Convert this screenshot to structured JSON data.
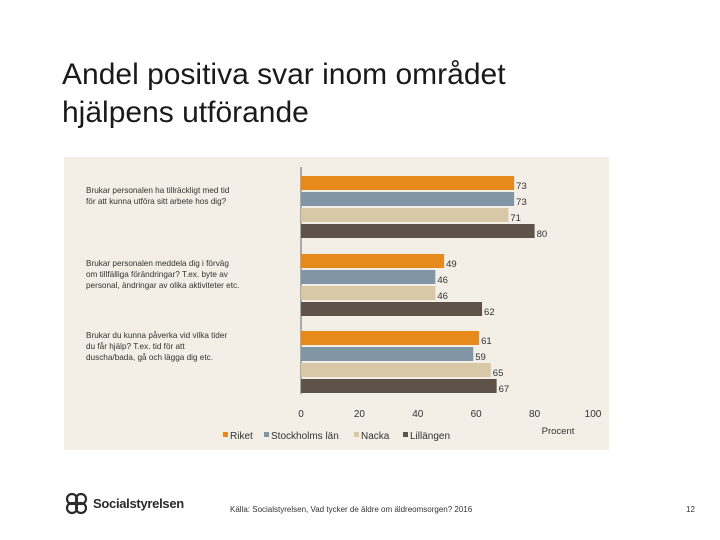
{
  "title_lines": [
    "Andel positiva svar inom området",
    "hjälpens utförande"
  ],
  "colors": {
    "Riket": "#e8891c",
    "Stockholms län": "#8095a5",
    "Nacka": "#d9c8a5",
    "Lillängen": "#5f5349"
  },
  "chart_data": {
    "type": "bar",
    "orientation": "horizontal",
    "categories": [
      "Brukar personalen ha tillräckligt med tid för att kunna utföra sitt arbete hos dig?",
      "Brukar personalen meddela dig i förväg om tillfälliga förändringar? T.ex. byte av personal, ändringar av olika aktiviteter etc.",
      "Brukar du kunna påverka vid vilka tider du får hjälp? T.ex. tid för att duscha/bada, gå och lägga dig etc."
    ],
    "category_lines": [
      [
        "Brukar personalen ha tillräckligt med tid",
        "för att kunna utföra sitt arbete hos dig?"
      ],
      [
        "Brukar personalen meddela dig i förväg",
        "om tillfälliga förändringar? T.ex. byte av",
        "personal, ändringar av olika aktiviteter etc."
      ],
      [
        "Brukar du kunna påverka vid vilka tider",
        "du får hjälp? T.ex. tid för att",
        "duscha/bada, gå och lägga dig etc."
      ]
    ],
    "series": [
      {
        "name": "Riket",
        "values": [
          73,
          49,
          61
        ]
      },
      {
        "name": "Stockholms län",
        "values": [
          73,
          46,
          59
        ]
      },
      {
        "name": "Nacka",
        "values": [
          71,
          46,
          65
        ]
      },
      {
        "name": "Lillängen",
        "values": [
          80,
          62,
          67
        ]
      }
    ],
    "xlim": [
      0,
      100
    ],
    "xticks": [
      0,
      20,
      40,
      60,
      80,
      100
    ],
    "xlabel": "Procent",
    "ylabel": "",
    "title": "",
    "grid": false,
    "legend_position": "bottom"
  },
  "footer": {
    "logo_text": "Socialstyrelsen",
    "source": "Källa: Socialstyrelsen, Vad tycker de äldre om äldreomsorgen? 2016",
    "page_number": "12"
  }
}
